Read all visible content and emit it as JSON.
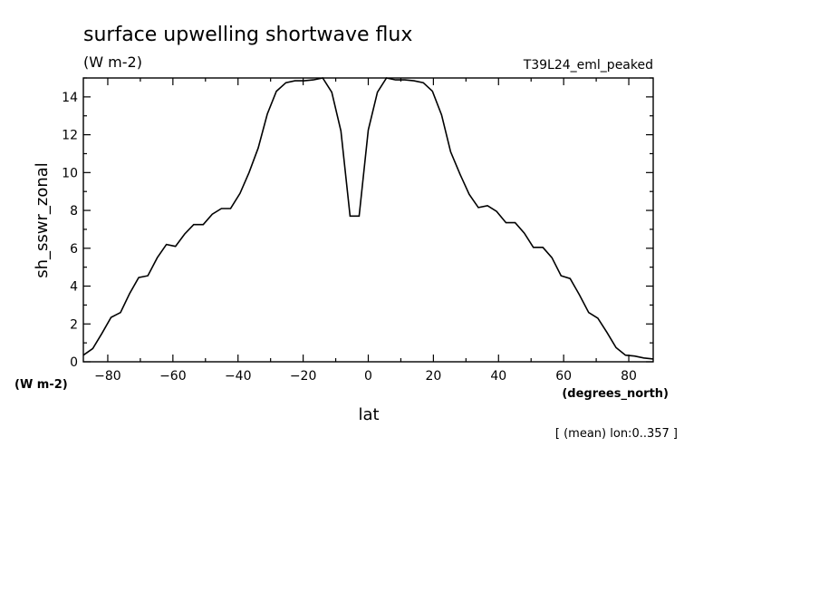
{
  "header": {
    "title": "surface upwelling shortwave flux",
    "units": "(W m-2)",
    "case_name": "T39L24_eml_peaked"
  },
  "footer": {
    "note": "[ (mean) lon:0..357 ]"
  },
  "chart_data": {
    "type": "line",
    "title": "surface upwelling shortwave flux",
    "xlabel": "lat",
    "xunits": "(degrees_north)",
    "ylabel": "sh_sswr_zonal",
    "yunits": "(W m-2)",
    "xlim": [
      -87.5,
      87.5
    ],
    "ylim": [
      0,
      15
    ],
    "xticks": [
      -80,
      -60,
      -40,
      -20,
      0,
      20,
      40,
      60,
      80
    ],
    "yticks": [
      0,
      2,
      4,
      6,
      8,
      10,
      12,
      14
    ],
    "grid": false,
    "series": [
      {
        "x": [
          -87.5,
          -84.6,
          -81.8,
          -79,
          -76.1,
          -73.3,
          -70.5,
          -67.7,
          -64.8,
          -62,
          -59.2,
          -56.4,
          -53.6,
          -50.7,
          -47.9,
          -45.1,
          -42.3,
          -39.4,
          -36.6,
          -33.8,
          -31,
          -28.2,
          -25.3,
          -22.5,
          -19.7,
          -16.9,
          -14,
          -11.2,
          -8.4,
          -5.6,
          -2.8,
          0,
          2.8,
          5.6,
          8.4,
          11.2,
          14,
          16.9,
          19.7,
          22.5,
          25.3,
          28.2,
          31,
          33.8,
          36.6,
          39.4,
          42.3,
          45.1,
          47.9,
          50.7,
          53.6,
          56.4,
          59.2,
          62,
          64.8,
          67.7,
          70.5,
          73.3,
          76.1,
          79,
          81.8,
          84.6,
          87.5
        ],
        "values": [
          0.35,
          0.7,
          1.5,
          2.35,
          2.6,
          3.6,
          4.45,
          4.55,
          5.5,
          6.2,
          6.1,
          6.75,
          7.25,
          7.25,
          7.8,
          8.1,
          8.1,
          8.9,
          10.0,
          11.3,
          13.1,
          14.3,
          14.75,
          14.85,
          14.85,
          14.9,
          15.0,
          14.25,
          12.2,
          7.7,
          7.7,
          12.25,
          14.25,
          15.0,
          14.9,
          14.9,
          14.85,
          14.75,
          14.3,
          13.05,
          11.1,
          9.9,
          8.85,
          8.15,
          8.25,
          7.95,
          7.35,
          7.35,
          6.8,
          6.05,
          6.05,
          5.5,
          4.55,
          4.4,
          3.55,
          2.6,
          2.3,
          1.55,
          0.75,
          0.35,
          0.3,
          0.2,
          0.15
        ]
      }
    ]
  }
}
